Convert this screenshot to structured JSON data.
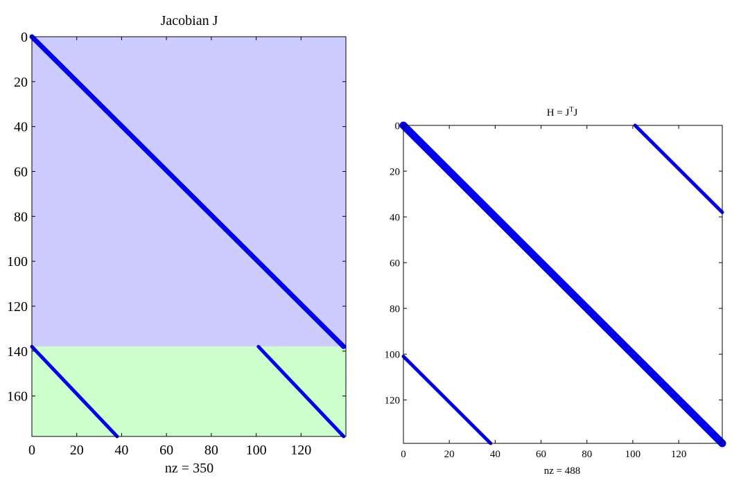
{
  "chart_data": [
    {
      "type": "spy",
      "title": "Jacobian J",
      "xlabel": "nz = 350",
      "ylabel": "",
      "xlim": [
        0,
        140
      ],
      "ylim": [
        0,
        178
      ],
      "xticks": [
        0,
        20,
        40,
        60,
        80,
        100,
        120
      ],
      "yticks": [
        0,
        20,
        40,
        60,
        80,
        100,
        120,
        140,
        160
      ],
      "regions": [
        {
          "rows": [
            0,
            138
          ],
          "color": "#ccccff"
        },
        {
          "rows": [
            138,
            178
          ],
          "color": "#ccffcc"
        }
      ],
      "series": [
        {
          "x": [
            0,
            139
          ],
          "y": [
            0,
            138
          ],
          "color": "#0000ee"
        },
        {
          "x": [
            0,
            38
          ],
          "y": [
            138,
            178
          ],
          "color": "#0000ee"
        },
        {
          "x": [
            101,
            139
          ],
          "y": [
            138,
            178
          ],
          "color": "#0000ee"
        }
      ]
    },
    {
      "type": "spy",
      "title": "H = J",
      "title_superscript": "T",
      "title_suffix": "J",
      "xlabel": "nz = 488",
      "ylabel": "",
      "xlim": [
        0,
        139
      ],
      "ylim": [
        0,
        139
      ],
      "xticks": [
        0,
        20,
        40,
        60,
        80,
        100,
        120
      ],
      "yticks": [
        0,
        20,
        40,
        60,
        80,
        100,
        120
      ],
      "regions": [],
      "series": [
        {
          "x": [
            0,
            139
          ],
          "y": [
            0,
            139
          ],
          "color": "#0000ee"
        },
        {
          "x": [
            101,
            139
          ],
          "y": [
            0,
            38
          ],
          "color": "#0000ee"
        },
        {
          "x": [
            0,
            38
          ],
          "y": [
            101,
            139
          ],
          "color": "#0000ee"
        }
      ]
    }
  ]
}
